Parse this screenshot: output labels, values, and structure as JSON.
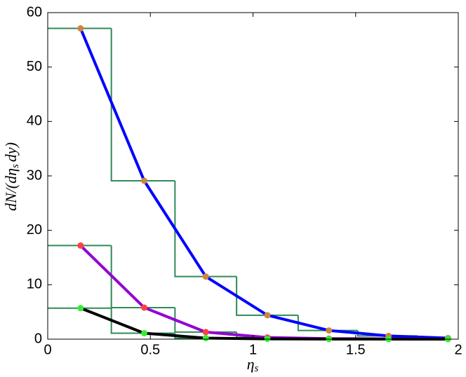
{
  "chart_data": {
    "type": "line",
    "xlabel": {
      "symbol": "η",
      "sub": "s"
    },
    "ylabel": {
      "main": "dN/(dη",
      "sub": "s",
      "rest": "dy)"
    },
    "x": [
      0.16,
      0.47,
      0.77,
      1.07,
      1.37,
      1.66,
      1.95
    ],
    "series": [
      {
        "color": "#0000ff",
        "marker_color": "#cd853f",
        "values": [
          57.1,
          29.1,
          11.5,
          4.4,
          1.6,
          0.6,
          0.2
        ]
      },
      {
        "color": "#9400d3",
        "marker_color": "#ff4040",
        "values": [
          17.2,
          5.8,
          1.3,
          0.3,
          0.1,
          0.05,
          0.02
        ]
      },
      {
        "color": "#000000",
        "marker_color": "#33ee33",
        "values": [
          5.7,
          1.1,
          0.2,
          0.05,
          0.02,
          0.01,
          0.0
        ]
      }
    ],
    "histograms": [
      {
        "color": "#2e8b57",
        "bins": [
          0,
          0.31,
          0.62,
          0.92,
          1.22,
          1.51,
          1.8
        ],
        "counts": [
          57.1,
          29.1,
          11.5,
          4.4,
          1.6,
          0.6
        ]
      },
      {
        "color": "#2e8b57",
        "bins": [
          0,
          0.31,
          0.62,
          0.92,
          1.22,
          1.51,
          1.8
        ],
        "counts": [
          17.2,
          5.8,
          1.3,
          0.3,
          0.1,
          0.05
        ]
      },
      {
        "color": "#2e8b57",
        "bins": [
          0,
          0.31,
          0.62,
          0.92,
          1.22,
          1.51,
          1.8
        ],
        "counts": [
          5.7,
          1.1,
          0.2,
          0.05,
          0.02,
          0.01
        ]
      }
    ],
    "xlim": [
      0,
      2
    ],
    "ylim": [
      0,
      60
    ],
    "xticks": [
      0,
      0.5,
      1,
      1.5,
      2
    ],
    "yticks": [
      0,
      10,
      20,
      30,
      40,
      50,
      60
    ]
  }
}
